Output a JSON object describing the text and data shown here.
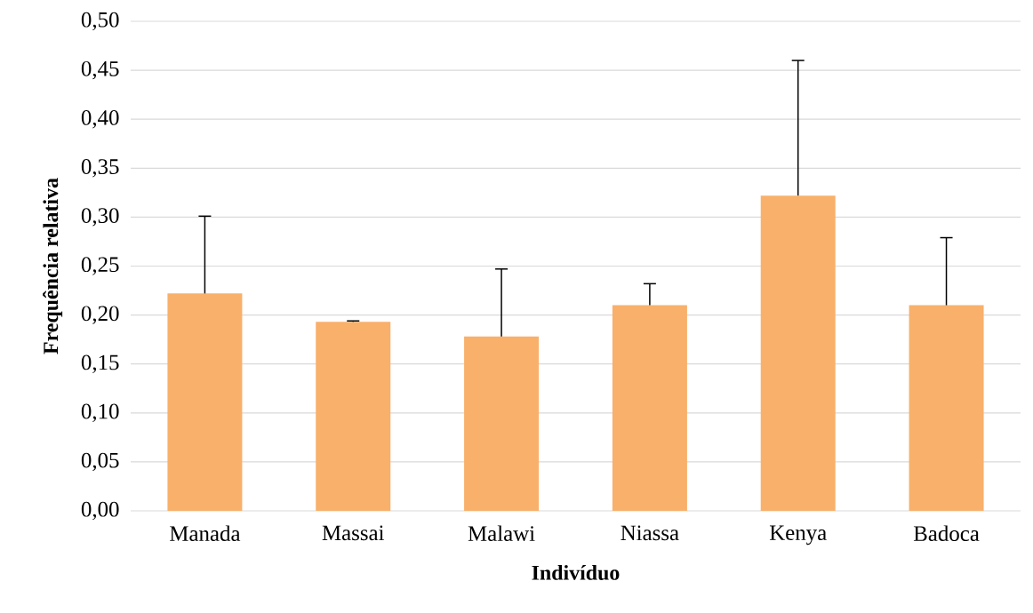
{
  "chart_data": {
    "type": "bar",
    "xlabel": "Indivíduo",
    "ylabel": "Frequência relativa",
    "categories": [
      "Manada",
      "Massai",
      "Malawi",
      "Niassa",
      "Kenya",
      "Badoca"
    ],
    "values": [
      0.222,
      0.193,
      0.178,
      0.21,
      0.322,
      0.21
    ],
    "errors": [
      [
        0.222,
        0.301
      ],
      [
        0.193,
        0.194
      ],
      [
        0.178,
        0.247
      ],
      [
        0.21,
        0.232
      ],
      [
        0.322,
        0.46
      ],
      [
        0.21,
        0.279
      ]
    ],
    "color": "#f8b06b",
    "ylim": [
      0,
      0.5
    ],
    "yticks": [
      {
        "value": 0,
        "label": "0,00"
      },
      {
        "value": 0.05,
        "label": "0,05"
      },
      {
        "value": 0.1,
        "label": "0,10"
      },
      {
        "value": 0.15,
        "label": "0,15"
      },
      {
        "value": 0.2,
        "label": "0,20"
      },
      {
        "value": 0.25,
        "label": "0,25"
      },
      {
        "value": 0.3,
        "label": "0,30"
      },
      {
        "value": 0.35,
        "label": "0,35"
      },
      {
        "value": 0.4,
        "label": "0,40"
      },
      {
        "value": 0.45,
        "label": "0,45"
      },
      {
        "value": 0.5,
        "label": "0,50"
      }
    ],
    "grid": "y"
  }
}
